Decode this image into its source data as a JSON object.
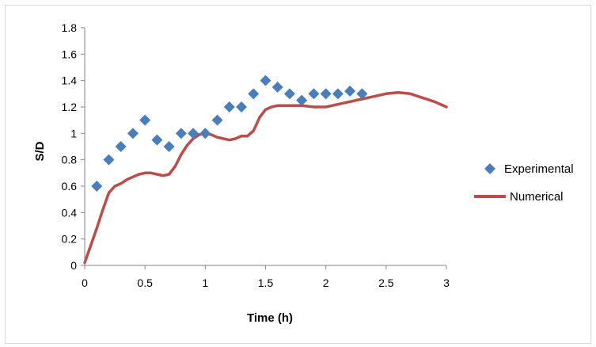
{
  "chart_data": {
    "type": "scatter",
    "title": "",
    "xlabel": "Time (h)",
    "ylabel": "S/D",
    "xlim": [
      0,
      3
    ],
    "ylim": [
      0,
      1.8
    ],
    "xticks": [
      0,
      0.5,
      1,
      1.5,
      2,
      2.5,
      3
    ],
    "xtick_labels": [
      "0",
      "0.5",
      "1",
      "1.5",
      "2",
      "2.5",
      "3"
    ],
    "yticks": [
      0,
      0.2,
      0.4,
      0.6,
      0.8,
      1,
      1.2,
      1.4,
      1.6,
      1.8
    ],
    "ytick_labels": [
      "0",
      "0.2",
      "0.4",
      "0.6",
      "0.8",
      "1",
      "1.2",
      "1.4",
      "1.6",
      "1.8"
    ],
    "grid": false,
    "legend_position": "right",
    "series": [
      {
        "name": "Experimental",
        "kind": "scatter",
        "marker": "diamond",
        "color": "#4a7ebb",
        "x": [
          0.1,
          0.2,
          0.3,
          0.4,
          0.5,
          0.6,
          0.7,
          0.8,
          0.9,
          1.0,
          1.1,
          1.2,
          1.3,
          1.4,
          1.5,
          1.6,
          1.7,
          1.8,
          1.9,
          2.0,
          2.1,
          2.2,
          2.3
        ],
        "y": [
          0.6,
          0.8,
          0.9,
          1.0,
          1.1,
          0.95,
          0.9,
          1.0,
          1.0,
          1.0,
          1.1,
          1.2,
          1.2,
          1.3,
          1.4,
          1.35,
          1.3,
          1.25,
          1.3,
          1.3,
          1.3,
          1.32,
          1.3
        ]
      },
      {
        "name": "Numerical",
        "kind": "line",
        "color": "#be4b48",
        "x": [
          0,
          0.05,
          0.1,
          0.15,
          0.2,
          0.25,
          0.3,
          0.35,
          0.4,
          0.45,
          0.5,
          0.55,
          0.6,
          0.65,
          0.7,
          0.75,
          0.8,
          0.85,
          0.9,
          0.95,
          1.0,
          1.05,
          1.1,
          1.15,
          1.2,
          1.25,
          1.3,
          1.35,
          1.4,
          1.45,
          1.5,
          1.55,
          1.6,
          1.7,
          1.8,
          1.9,
          2.0,
          2.1,
          2.2,
          2.3,
          2.4,
          2.5,
          2.6,
          2.7,
          2.8,
          2.9,
          3.0
        ],
        "y": [
          0.02,
          0.15,
          0.28,
          0.42,
          0.55,
          0.6,
          0.62,
          0.65,
          0.67,
          0.69,
          0.7,
          0.7,
          0.69,
          0.68,
          0.69,
          0.75,
          0.84,
          0.91,
          0.96,
          0.99,
          1.0,
          0.99,
          0.97,
          0.96,
          0.95,
          0.96,
          0.98,
          0.98,
          1.02,
          1.12,
          1.18,
          1.2,
          1.21,
          1.21,
          1.21,
          1.2,
          1.2,
          1.22,
          1.24,
          1.26,
          1.28,
          1.3,
          1.31,
          1.3,
          1.27,
          1.24,
          1.2
        ]
      }
    ]
  }
}
